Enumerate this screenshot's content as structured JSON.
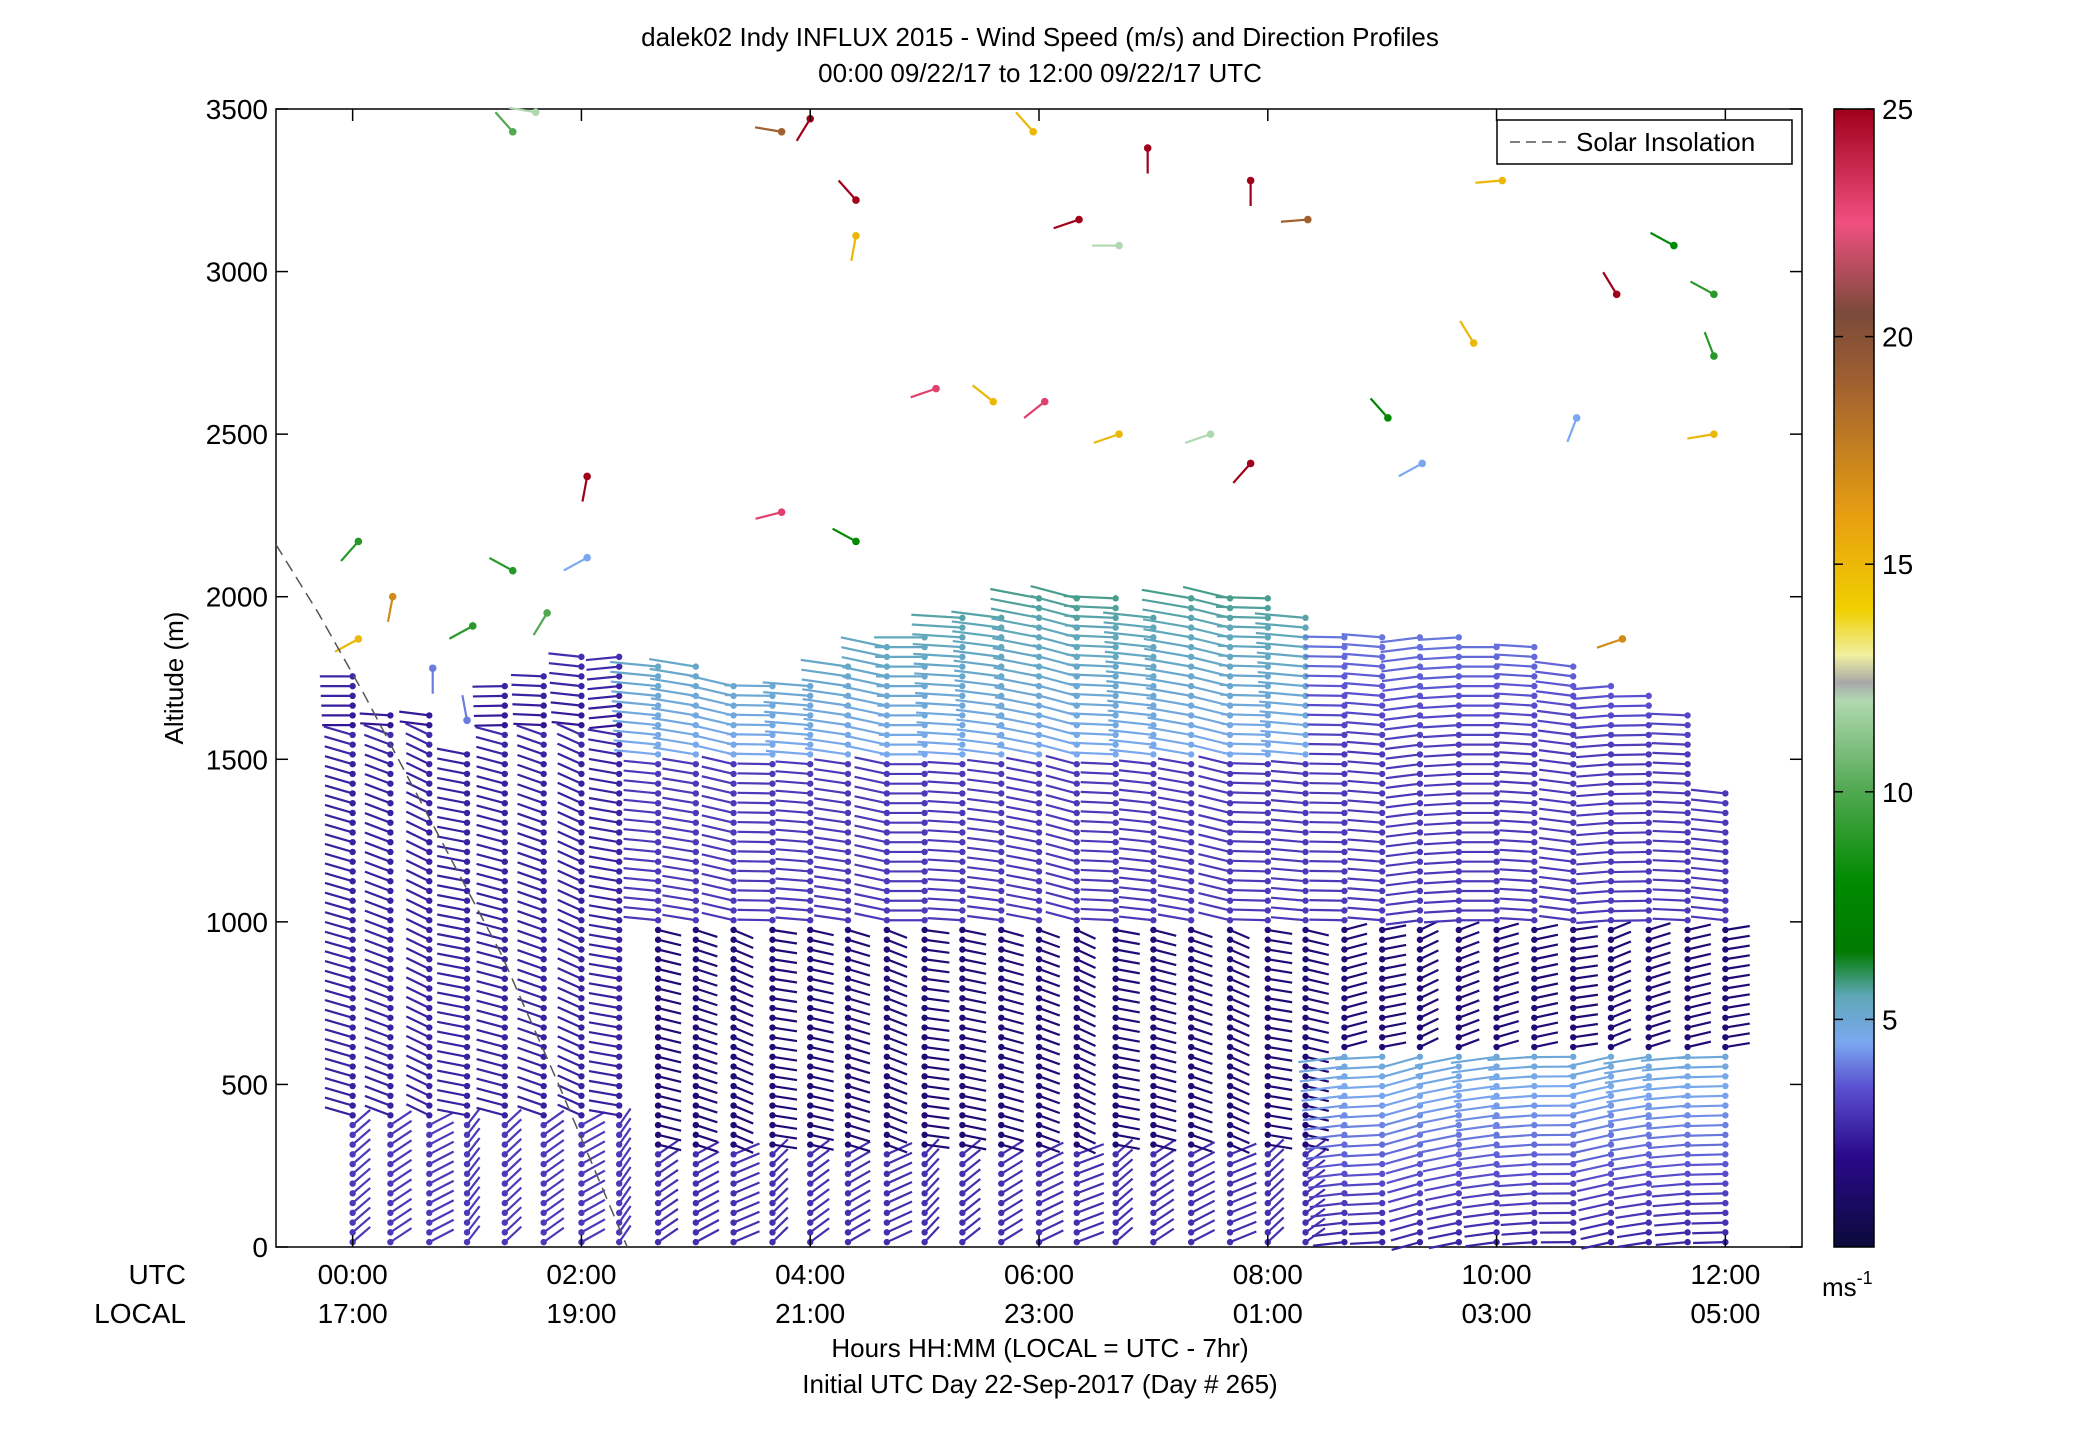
{
  "chart_data": {
    "type": "wind_barb_profile",
    "title": "dalek02 Indy INFLUX 2015 - Wind Speed (m/s) and Direction Profiles",
    "subtitle": "00:00 09/22/17 to 12:00 09/22/17  UTC",
    "ylabel": "Altitude (m)",
    "xlabel": "Hours HH:MM  (LOCAL = UTC - 7hr)",
    "xlabel2": "Initial UTC Day 22-Sep-2017 (Day # 265)",
    "x_row_labels": {
      "utc": "UTC",
      "local": "LOCAL"
    },
    "xlim_hours": [
      -0.67,
      12.67
    ],
    "ylim": [
      0,
      3500
    ],
    "yticks": [
      0,
      500,
      1000,
      1500,
      2000,
      2500,
      3000,
      3500
    ],
    "xticks": [
      {
        "hour": 0,
        "utc": "00:00",
        "local": "17:00"
      },
      {
        "hour": 2,
        "utc": "02:00",
        "local": "19:00"
      },
      {
        "hour": 4,
        "utc": "04:00",
        "local": "21:00"
      },
      {
        "hour": 6,
        "utc": "06:00",
        "local": "23:00"
      },
      {
        "hour": 8,
        "utc": "08:00",
        "local": "01:00"
      },
      {
        "hour": 10,
        "utc": "10:00",
        "local": "03:00"
      },
      {
        "hour": 12,
        "utc": "12:00",
        "local": "05:00"
      }
    ],
    "legend": {
      "label": "Solar Insolation",
      "location": "top-right"
    },
    "colorbar": {
      "label": "ms-1",
      "unit_base": "ms",
      "unit_exp": "-1",
      "range": [
        0,
        25
      ],
      "ticks": [
        5,
        10,
        15,
        20,
        25
      ],
      "colormap": [
        [
          0,
          "#0a0a3a"
        ],
        [
          2,
          "#2a0a8a"
        ],
        [
          3.5,
          "#5a50d0"
        ],
        [
          4.5,
          "#7aa8f0"
        ],
        [
          5.5,
          "#5fa8b8"
        ],
        [
          6.5,
          "#007a00"
        ],
        [
          8,
          "#008a00"
        ],
        [
          10,
          "#50a850"
        ],
        [
          12,
          "#b0d8b0"
        ],
        [
          12.4,
          "#a8a8a8"
        ],
        [
          13,
          "#f0f0a0"
        ],
        [
          14,
          "#f0d000"
        ],
        [
          16,
          "#e8a010"
        ],
        [
          19,
          "#a06030"
        ],
        [
          20.5,
          "#7a4a3a"
        ],
        [
          22.5,
          "#f05080"
        ],
        [
          25,
          "#a0001a"
        ]
      ]
    },
    "solar_insolation_line": [
      [
        -0.67,
        2160
      ],
      [
        -0.3,
        1950
      ],
      [
        0.1,
        1700
      ],
      [
        0.7,
        1300
      ],
      [
        1.3,
        900
      ],
      [
        1.8,
        500
      ],
      [
        2.4,
        0
      ]
    ],
    "profile_hours": [
      0,
      0.33,
      0.67,
      1,
      1.33,
      1.67,
      2,
      2.33,
      2.67,
      3,
      3.33,
      3.67,
      4,
      4.33,
      4.67,
      5,
      5.33,
      5.67,
      6,
      6.33,
      6.67,
      7,
      7.33,
      7.67,
      8,
      8.33,
      8.67,
      9,
      9.33,
      9.67,
      10,
      10.33,
      10.67,
      11,
      11.33,
      11.67,
      12
    ],
    "profile_tops_m": [
      1780,
      1650,
      1650,
      1520,
      1730,
      1760,
      1820,
      1820,
      1800,
      1800,
      1750,
      1750,
      1750,
      1800,
      1850,
      1900,
      1950,
      1950,
      2000,
      2000,
      2000,
      1950,
      2000,
      2000,
      2000,
      1950,
      1900,
      1900,
      1900,
      1900,
      1850,
      1850,
      1800,
      1750,
      1700,
      1650,
      1400
    ],
    "wind_regimes": [
      {
        "layer_m": [
          0,
          400
        ],
        "hours": [
          0,
          2.5
        ],
        "speed_ms": 3.0,
        "direction_deg": 30
      },
      {
        "layer_m": [
          400,
          1600
        ],
        "hours": [
          0,
          2.5
        ],
        "speed_ms": 2.5,
        "direction_deg": 300
      },
      {
        "layer_m": [
          0,
          300
        ],
        "hours": [
          2.5,
          8.5
        ],
        "speed_ms": 2.8,
        "direction_deg": 40
      },
      {
        "layer_m": [
          300,
          1000
        ],
        "hours": [
          2.5,
          8.5
        ],
        "speed_ms": 1.5,
        "direction_deg": 120
      },
      {
        "layer_m": [
          1000,
          1500
        ],
        "hours": [
          2.5,
          8.5
        ],
        "speed_ms": 3.0,
        "direction_deg": 285
      },
      {
        "layer_m": [
          1500,
          2100
        ],
        "hours": [
          2.5,
          8.5
        ],
        "speed_ms": 4.5,
        "direction_deg": 285
      },
      {
        "layer_m": [
          0,
          600
        ],
        "hours": [
          8.5,
          12
        ],
        "speed_ms": 4.5,
        "direction_deg": 255
      },
      {
        "layer_m": [
          600,
          1000
        ],
        "hours": [
          8.5,
          12
        ],
        "speed_ms": 1.5,
        "direction_deg": 60
      },
      {
        "layer_m": [
          1000,
          1900
        ],
        "hours": [
          8.5,
          12
        ],
        "speed_ms": 3.0,
        "direction_deg": 270
      }
    ],
    "upper_level_barbs": [
      {
        "hour": 0.05,
        "alt": 2170,
        "speed": 9,
        "dir": 220
      },
      {
        "hour": 0.05,
        "alt": 1870,
        "speed": 15,
        "dir": 240
      },
      {
        "hour": 0.35,
        "alt": 2000,
        "speed": 17,
        "dir": 190
      },
      {
        "hour": 0.7,
        "alt": 1780,
        "speed": 4,
        "dir": 180
      },
      {
        "hour": 1.05,
        "alt": 1910,
        "speed": 9,
        "dir": 240
      },
      {
        "hour": 1.0,
        "alt": 1620,
        "speed": 4,
        "dir": 350
      },
      {
        "hour": 1.4,
        "alt": 3430,
        "speed": 10,
        "dir": 320
      },
      {
        "hour": 1.4,
        "alt": 2080,
        "speed": 9,
        "dir": 300
      },
      {
        "hour": 1.6,
        "alt": 3490,
        "speed": 12,
        "dir": 280
      },
      {
        "hour": 1.7,
        "alt": 1950,
        "speed": 10,
        "dir": 210
      },
      {
        "hour": 2.05,
        "alt": 2370,
        "speed": 25,
        "dir": 190
      },
      {
        "hour": 2.05,
        "alt": 2120,
        "speed": 4.5,
        "dir": 240
      },
      {
        "hour": 3.75,
        "alt": 2260,
        "speed": 23,
        "dir": 255
      },
      {
        "hour": 3.75,
        "alt": 3430,
        "speed": 19,
        "dir": 280
      },
      {
        "hour": 4.0,
        "alt": 3470,
        "speed": 25,
        "dir": 210
      },
      {
        "hour": 4.4,
        "alt": 3220,
        "speed": 25,
        "dir": 320
      },
      {
        "hour": 4.4,
        "alt": 3110,
        "speed": 15,
        "dir": 190
      },
      {
        "hour": 4.4,
        "alt": 2170,
        "speed": 8,
        "dir": 300
      },
      {
        "hour": 5.1,
        "alt": 2640,
        "speed": 23,
        "dir": 250
      },
      {
        "hour": 5.6,
        "alt": 2600,
        "speed": 15,
        "dir": 310
      },
      {
        "hour": 5.95,
        "alt": 3430,
        "speed": 15,
        "dir": 320
      },
      {
        "hour": 6.05,
        "alt": 2600,
        "speed": 23,
        "dir": 230
      },
      {
        "hour": 6.35,
        "alt": 3160,
        "speed": 25,
        "dir": 250
      },
      {
        "hour": 6.7,
        "alt": 3080,
        "speed": 12,
        "dir": 270
      },
      {
        "hour": 6.7,
        "alt": 2500,
        "speed": 15,
        "dir": 250
      },
      {
        "hour": 6.95,
        "alt": 3380,
        "speed": 25,
        "dir": 180
      },
      {
        "hour": 7.5,
        "alt": 2500,
        "speed": 12,
        "dir": 250
      },
      {
        "hour": 7.85,
        "alt": 3280,
        "speed": 25,
        "dir": 180
      },
      {
        "hour": 7.85,
        "alt": 2410,
        "speed": 25,
        "dir": 220
      },
      {
        "hour": 8.35,
        "alt": 3160,
        "speed": 19,
        "dir": 265
      },
      {
        "hour": 9.05,
        "alt": 2550,
        "speed": 8,
        "dir": 320
      },
      {
        "hour": 9.35,
        "alt": 2410,
        "speed": 4.5,
        "dir": 240
      },
      {
        "hour": 9.8,
        "alt": 2780,
        "speed": 15,
        "dir": 330
      },
      {
        "hour": 10.05,
        "alt": 3280,
        "speed": 15,
        "dir": 265
      },
      {
        "hour": 10.7,
        "alt": 2550,
        "speed": 4.5,
        "dir": 200
      },
      {
        "hour": 11.05,
        "alt": 2930,
        "speed": 25,
        "dir": 330
      },
      {
        "hour": 11.55,
        "alt": 3080,
        "speed": 8,
        "dir": 300
      },
      {
        "hour": 11.9,
        "alt": 2930,
        "speed": 9,
        "dir": 300
      },
      {
        "hour": 11.9,
        "alt": 2740,
        "speed": 9,
        "dir": 340
      },
      {
        "hour": 11.9,
        "alt": 2500,
        "speed": 15,
        "dir": 260
      },
      {
        "hour": 11.1,
        "alt": 1870,
        "speed": 17,
        "dir": 250
      }
    ]
  }
}
